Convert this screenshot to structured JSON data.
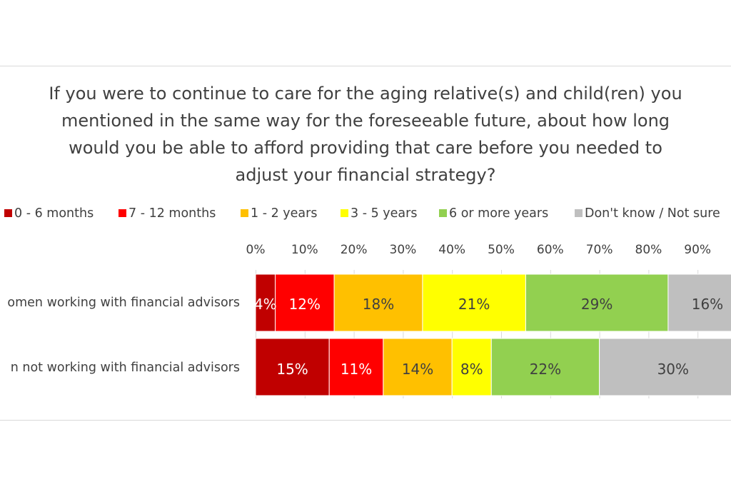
{
  "chart_data": {
    "type": "bar",
    "orientation": "horizontal",
    "stacked": true,
    "title_lines": [
      "If you were to continue to care for the aging relative(s) and child(ren) you",
      "mentioned in the same way for the foreseeable future, about how long",
      "would you be able to afford providing that care before you needed to",
      "adjust your financial strategy?"
    ],
    "categories": [
      "omen working with financial advisors",
      "n not working with financial advisors"
    ],
    "x_ticks": [
      "0%",
      "10%",
      "20%",
      "30%",
      "40%",
      "50%",
      "60%",
      "70%",
      "80%",
      "90%"
    ],
    "xlim": [
      0,
      100
    ],
    "grid": true,
    "legend_position": "top",
    "series": [
      {
        "name": "0 - 6 months",
        "color": "#c00000",
        "values": [
          4,
          15
        ],
        "labels": [
          "4%",
          "15%"
        ],
        "label_color": "#ffffff"
      },
      {
        "name": "7 - 12 months",
        "color": "#ff0000",
        "values": [
          12,
          11
        ],
        "labels": [
          "12%",
          "11%"
        ],
        "label_color": "#ffffff"
      },
      {
        "name": "1 - 2 years",
        "color": "#ffc000",
        "values": [
          18,
          14
        ],
        "labels": [
          "18%",
          "14%"
        ],
        "label_color": "#404040"
      },
      {
        "name": "3 - 5 years",
        "color": "#ffff00",
        "values": [
          21,
          8
        ],
        "labels": [
          "21%",
          "8%"
        ],
        "label_color": "#404040"
      },
      {
        "name": "6 or more years",
        "color": "#92d050",
        "values": [
          29,
          22
        ],
        "labels": [
          "29%",
          "22%"
        ],
        "label_color": "#404040"
      },
      {
        "name": "Don't know / Not sure",
        "color": "#bfbfbf",
        "values": [
          16,
          30
        ],
        "labels": [
          "16%",
          "30%"
        ],
        "label_color": "#404040"
      }
    ]
  }
}
